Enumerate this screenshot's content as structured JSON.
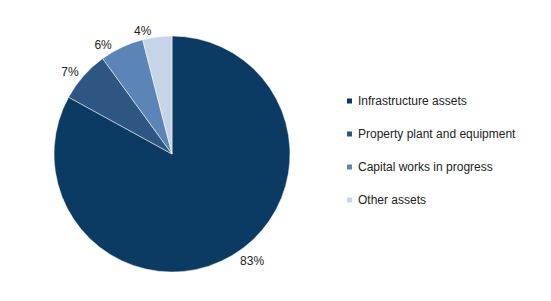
{
  "chart_data": {
    "type": "pie",
    "categories": [
      "Infrastructure assets",
      "Property plant and equipment",
      "Capital works in progress",
      "Other assets"
    ],
    "values": [
      83,
      7,
      6,
      4
    ],
    "value_labels": [
      "83%",
      "7%",
      "6%",
      "4%"
    ],
    "colors": [
      "#0b3a62",
      "#2d5682",
      "#5b85b6",
      "#c6d4e8"
    ],
    "data_labels": true,
    "legend": "right"
  }
}
